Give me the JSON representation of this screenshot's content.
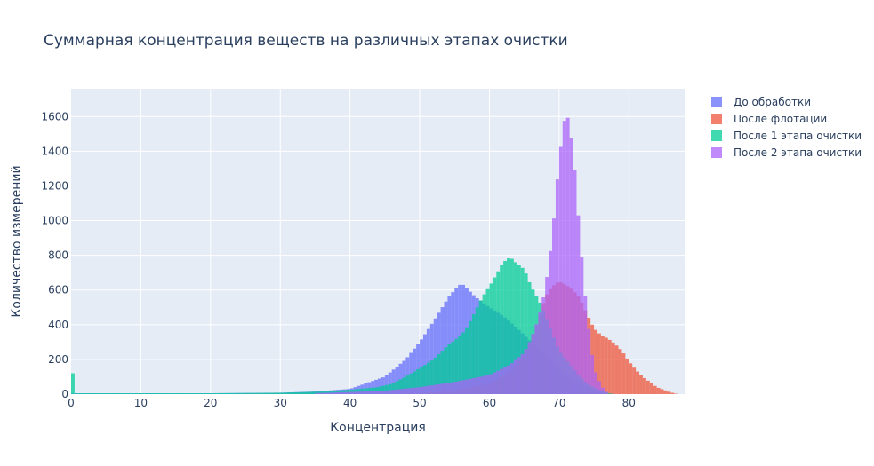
{
  "chart_data": {
    "type": "histogram",
    "title": "Суммарная концентрация веществ на различных этапах очистки",
    "xlabel": "Концентрация",
    "ylabel": "Количество измерений",
    "xlim": [
      0,
      88
    ],
    "ylim": [
      0,
      1760
    ],
    "x_ticks": [
      0,
      10,
      20,
      30,
      40,
      50,
      60,
      70,
      80
    ],
    "y_ticks": [
      0,
      200,
      400,
      600,
      800,
      1000,
      1200,
      1400,
      1600
    ],
    "grid": true,
    "legend_position": "top-right",
    "bin_width": 0.5,
    "series": [
      {
        "name": "До обработки",
        "color": "#636efa",
        "points": [
          [
            0,
            5
          ],
          [
            10,
            5
          ],
          [
            20,
            5
          ],
          [
            30,
            8
          ],
          [
            35,
            15
          ],
          [
            40,
            30
          ],
          [
            45,
            100
          ],
          [
            48,
            200
          ],
          [
            50,
            300
          ],
          [
            52,
            420
          ],
          [
            54,
            550
          ],
          [
            55,
            600
          ],
          [
            56,
            640
          ],
          [
            57,
            600
          ],
          [
            58,
            560
          ],
          [
            60,
            500
          ],
          [
            62,
            450
          ],
          [
            64,
            380
          ],
          [
            66,
            300
          ],
          [
            68,
            230
          ],
          [
            70,
            150
          ],
          [
            72,
            80
          ],
          [
            74,
            40
          ],
          [
            76,
            10
          ],
          [
            78,
            0
          ]
        ]
      },
      {
        "name": "После флотации",
        "color": "#ef553b",
        "points": [
          [
            45,
            0
          ],
          [
            50,
            5
          ],
          [
            55,
            20
          ],
          [
            60,
            60
          ],
          [
            63,
            130
          ],
          [
            65,
            230
          ],
          [
            66,
            320
          ],
          [
            67,
            420
          ],
          [
            68,
            560
          ],
          [
            69,
            620
          ],
          [
            70,
            650
          ],
          [
            71,
            630
          ],
          [
            72,
            600
          ],
          [
            73,
            550
          ],
          [
            74,
            460
          ],
          [
            75,
            380
          ],
          [
            76,
            340
          ],
          [
            77,
            320
          ],
          [
            78,
            290
          ],
          [
            79,
            250
          ],
          [
            80,
            190
          ],
          [
            81,
            140
          ],
          [
            82,
            100
          ],
          [
            83,
            70
          ],
          [
            84,
            40
          ],
          [
            85,
            25
          ],
          [
            86,
            10
          ],
          [
            87,
            0
          ]
        ]
      },
      {
        "name": "После 1 этапа очистки",
        "color": "#00cc96",
        "spike": {
          "x": 0,
          "y": 120
        },
        "points": [
          [
            0.5,
            5
          ],
          [
            10,
            5
          ],
          [
            20,
            5
          ],
          [
            30,
            8
          ],
          [
            36,
            15
          ],
          [
            40,
            25
          ],
          [
            44,
            40
          ],
          [
            46,
            60
          ],
          [
            48,
            100
          ],
          [
            50,
            150
          ],
          [
            52,
            200
          ],
          [
            54,
            280
          ],
          [
            56,
            340
          ],
          [
            57,
            400
          ],
          [
            58,
            480
          ],
          [
            59,
            560
          ],
          [
            60,
            620
          ],
          [
            61,
            690
          ],
          [
            62,
            760
          ],
          [
            63,
            790
          ],
          [
            64,
            750
          ],
          [
            65,
            720
          ],
          [
            66,
            620
          ],
          [
            67,
            550
          ],
          [
            68,
            460
          ],
          [
            69,
            350
          ],
          [
            70,
            250
          ],
          [
            71,
            200
          ],
          [
            72,
            150
          ],
          [
            73,
            100
          ],
          [
            74,
            60
          ],
          [
            75,
            40
          ],
          [
            76,
            20
          ],
          [
            77,
            5
          ],
          [
            78,
            0
          ]
        ]
      },
      {
        "name": "После 2 этапа очистки",
        "color": "#ab63fa",
        "points": [
          [
            35,
            5
          ],
          [
            45,
            20
          ],
          [
            50,
            40
          ],
          [
            55,
            70
          ],
          [
            60,
            110
          ],
          [
            63,
            170
          ],
          [
            65,
            240
          ],
          [
            66,
            320
          ],
          [
            67,
            430
          ],
          [
            68,
            600
          ],
          [
            69,
            900
          ],
          [
            70,
            1350
          ],
          [
            71,
            1650
          ],
          [
            72,
            1420
          ],
          [
            73,
            900
          ],
          [
            74,
            450
          ],
          [
            75,
            150
          ],
          [
            76,
            50
          ],
          [
            77,
            0
          ]
        ]
      }
    ]
  }
}
